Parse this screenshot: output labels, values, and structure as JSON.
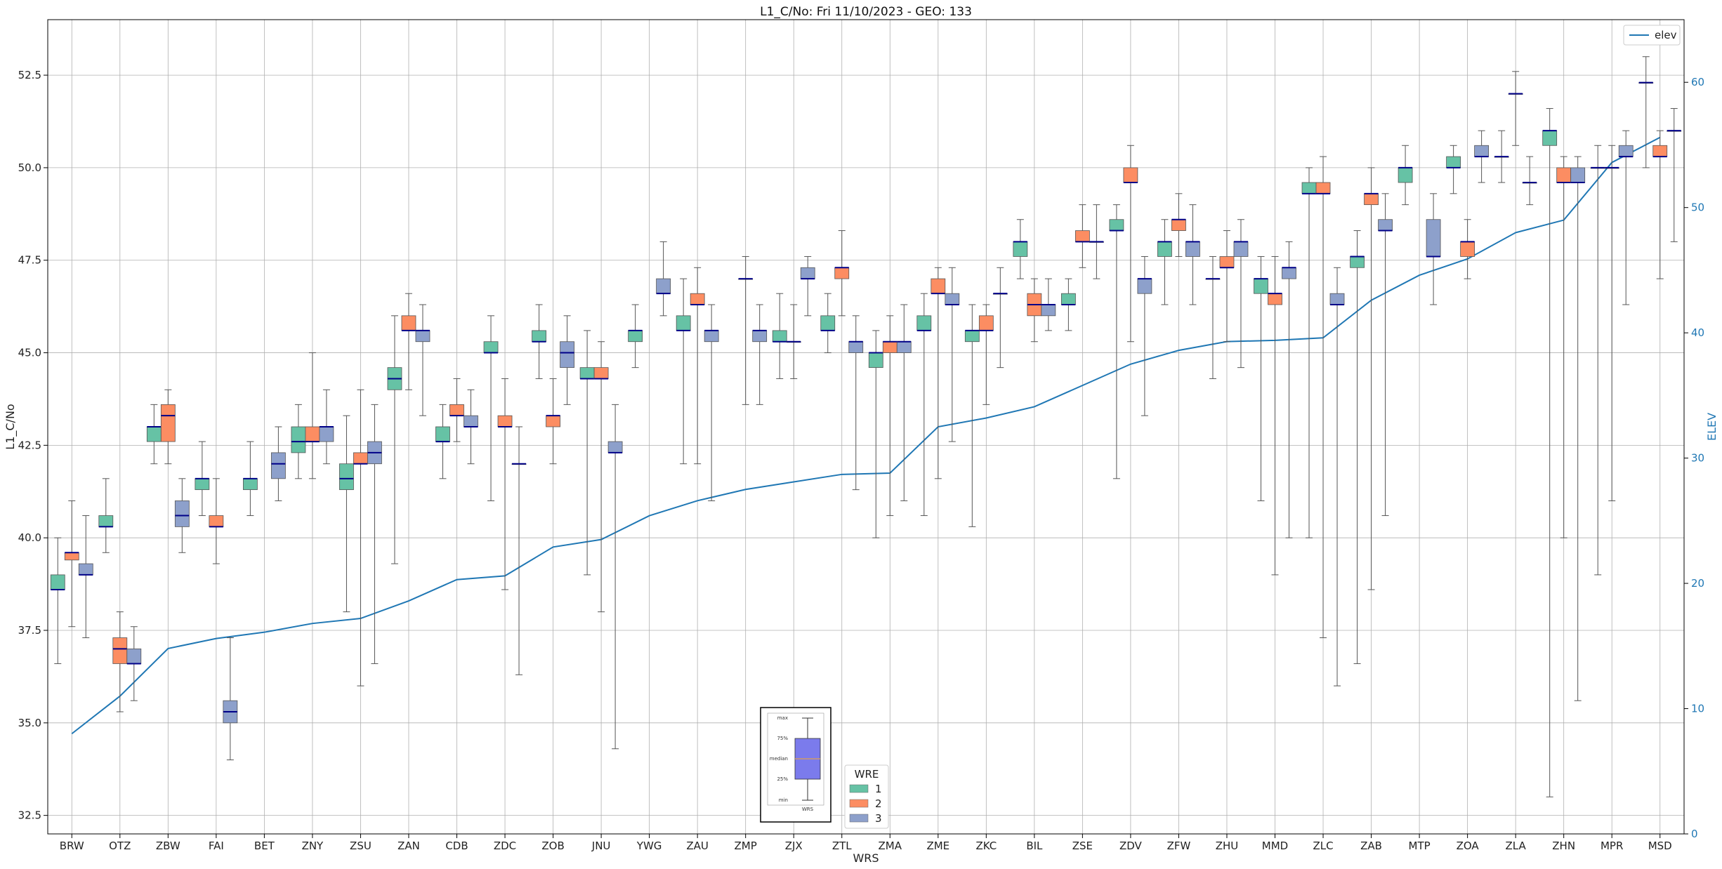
{
  "chart_data": {
    "type": "box",
    "title": "L1_C/No: Fri 11/10/2023 - GEO: 133",
    "xlabel": "WRS",
    "ylabel": "L1_C/No",
    "y2label": "ELEV",
    "ylim": [
      32.0,
      54.0
    ],
    "y2lim": [
      0,
      65
    ],
    "yticks": [
      "32.5",
      "35.0",
      "37.5",
      "40.0",
      "42.5",
      "45.0",
      "47.5",
      "50.0",
      "52.5"
    ],
    "y2ticks": [
      "0",
      "10",
      "20",
      "30",
      "40",
      "50",
      "60"
    ],
    "grid": true,
    "categories": [
      "BRW",
      "OTZ",
      "ZBW",
      "FAI",
      "BET",
      "ZNY",
      "ZSU",
      "ZAN",
      "CDB",
      "ZDC",
      "ZOB",
      "JNU",
      "YWG",
      "ZAU",
      "ZMP",
      "ZJX",
      "ZTL",
      "ZMA",
      "ZME",
      "ZKC",
      "BIL",
      "ZSE",
      "ZDV",
      "ZFW",
      "ZHU",
      "MMD",
      "ZLC",
      "ZAB",
      "MTP",
      "ZOA",
      "ZLA",
      "ZHN",
      "MPR",
      "MSD"
    ],
    "series_colors": {
      "1": "#66c2a5",
      "2": "#fc8d62",
      "3": "#8da0cb"
    },
    "boxes": [
      {
        "station": "BRW",
        "wre": 1,
        "min": 36.6,
        "q1": 38.6,
        "median": 38.6,
        "q3": 39.0,
        "max": 40.0
      },
      {
        "station": "BRW",
        "wre": 2,
        "min": 37.6,
        "q1": 39.4,
        "median": 39.6,
        "q3": 39.6,
        "max": 41.0
      },
      {
        "station": "BRW",
        "wre": 3,
        "min": 37.3,
        "q1": 39.0,
        "median": 39.0,
        "q3": 39.3,
        "max": 40.6
      },
      {
        "station": "OTZ",
        "wre": 1,
        "min": 39.6,
        "q1": 40.3,
        "median": 40.3,
        "q3": 40.6,
        "max": 41.6
      },
      {
        "station": "OTZ",
        "wre": 2,
        "min": 35.3,
        "q1": 36.6,
        "median": 37.0,
        "q3": 37.3,
        "max": 38.0
      },
      {
        "station": "OTZ",
        "wre": 3,
        "min": 35.6,
        "q1": 36.6,
        "median": 36.6,
        "q3": 37.0,
        "max": 37.6
      },
      {
        "station": "ZBW",
        "wre": 1,
        "min": 42.0,
        "q1": 42.6,
        "median": 43.0,
        "q3": 43.0,
        "max": 43.6
      },
      {
        "station": "ZBW",
        "wre": 2,
        "min": 42.0,
        "q1": 42.6,
        "median": 43.3,
        "q3": 43.6,
        "max": 44.0
      },
      {
        "station": "ZBW",
        "wre": 3,
        "min": 39.6,
        "q1": 40.3,
        "median": 40.6,
        "q3": 41.0,
        "max": 41.6
      },
      {
        "station": "FAI",
        "wre": 1,
        "min": 40.6,
        "q1": 41.3,
        "median": 41.6,
        "q3": 41.6,
        "max": 42.6
      },
      {
        "station": "FAI",
        "wre": 2,
        "min": 39.3,
        "q1": 40.3,
        "median": 40.3,
        "q3": 40.6,
        "max": 41.6
      },
      {
        "station": "FAI",
        "wre": 3,
        "min": 34.0,
        "q1": 35.0,
        "median": 35.3,
        "q3": 35.6,
        "max": 37.3
      },
      {
        "station": "BET",
        "wre": 1,
        "min": 40.6,
        "q1": 41.3,
        "median": 41.6,
        "q3": 41.6,
        "max": 42.6
      },
      {
        "station": "BET",
        "wre": 3,
        "min": 41.0,
        "q1": 41.6,
        "median": 42.0,
        "q3": 42.3,
        "max": 43.0
      },
      {
        "station": "ZNY",
        "wre": 1,
        "min": 41.6,
        "q1": 42.3,
        "median": 42.6,
        "q3": 43.0,
        "max": 43.6
      },
      {
        "station": "ZNY",
        "wre": 2,
        "min": 41.6,
        "q1": 42.6,
        "median": 42.6,
        "q3": 43.0,
        "max": 45.0
      },
      {
        "station": "ZNY",
        "wre": 3,
        "min": 42.0,
        "q1": 42.6,
        "median": 43.0,
        "q3": 43.0,
        "max": 44.0
      },
      {
        "station": "ZSU",
        "wre": 1,
        "min": 38.0,
        "q1": 41.3,
        "median": 41.6,
        "q3": 42.0,
        "max": 43.3
      },
      {
        "station": "ZSU",
        "wre": 2,
        "min": 36.0,
        "q1": 42.0,
        "median": 42.0,
        "q3": 42.3,
        "max": 44.0
      },
      {
        "station": "ZSU",
        "wre": 3,
        "min": 36.6,
        "q1": 42.0,
        "median": 42.3,
        "q3": 42.6,
        "max": 43.6
      },
      {
        "station": "ZAN",
        "wre": 1,
        "min": 39.3,
        "q1": 44.0,
        "median": 44.3,
        "q3": 44.6,
        "max": 46.0
      },
      {
        "station": "ZAN",
        "wre": 2,
        "min": 44.0,
        "q1": 45.6,
        "median": 45.6,
        "q3": 46.0,
        "max": 46.6
      },
      {
        "station": "ZAN",
        "wre": 3,
        "min": 43.3,
        "q1": 45.3,
        "median": 45.6,
        "q3": 45.6,
        "max": 46.3
      },
      {
        "station": "CDB",
        "wre": 1,
        "min": 41.6,
        "q1": 42.6,
        "median": 42.6,
        "q3": 43.0,
        "max": 43.6
      },
      {
        "station": "CDB",
        "wre": 2,
        "min": 42.6,
        "q1": 43.3,
        "median": 43.3,
        "q3": 43.6,
        "max": 44.3
      },
      {
        "station": "CDB",
        "wre": 3,
        "min": 42.0,
        "q1": 43.0,
        "median": 43.0,
        "q3": 43.3,
        "max": 44.0
      },
      {
        "station": "ZDC",
        "wre": 1,
        "min": 41.0,
        "q1": 45.0,
        "median": 45.0,
        "q3": 45.3,
        "max": 46.0
      },
      {
        "station": "ZDC",
        "wre": 2,
        "min": 38.6,
        "q1": 43.0,
        "median": 43.0,
        "q3": 43.3,
        "max": 44.3
      },
      {
        "station": "ZDC",
        "wre": 3,
        "min": 36.3,
        "q1": 42.0,
        "median": 42.0,
        "q3": 42.0,
        "max": 43.0
      },
      {
        "station": "ZOB",
        "wre": 1,
        "min": 44.3,
        "q1": 45.3,
        "median": 45.3,
        "q3": 45.6,
        "max": 46.3
      },
      {
        "station": "ZOB",
        "wre": 2,
        "min": 42.0,
        "q1": 43.0,
        "median": 43.3,
        "q3": 43.3,
        "max": 44.3
      },
      {
        "station": "ZOB",
        "wre": 3,
        "min": 43.6,
        "q1": 44.6,
        "median": 45.0,
        "q3": 45.3,
        "max": 46.0
      },
      {
        "station": "JNU",
        "wre": 1,
        "min": 39.0,
        "q1": 44.3,
        "median": 44.3,
        "q3": 44.6,
        "max": 45.6
      },
      {
        "station": "JNU",
        "wre": 2,
        "min": 38.0,
        "q1": 44.3,
        "median": 44.3,
        "q3": 44.6,
        "max": 45.3
      },
      {
        "station": "JNU",
        "wre": 3,
        "min": 34.3,
        "q1": 42.3,
        "median": 42.3,
        "q3": 42.6,
        "max": 43.6
      },
      {
        "station": "YWG",
        "wre": 1,
        "min": 44.6,
        "q1": 45.3,
        "median": 45.6,
        "q3": 45.6,
        "max": 46.3
      },
      {
        "station": "YWG",
        "wre": 3,
        "min": 46.0,
        "q1": 46.6,
        "median": 46.6,
        "q3": 47.0,
        "max": 48.0
      },
      {
        "station": "ZAU",
        "wre": 1,
        "min": 42.0,
        "q1": 45.6,
        "median": 45.6,
        "q3": 46.0,
        "max": 47.0
      },
      {
        "station": "ZAU",
        "wre": 2,
        "min": 42.0,
        "q1": 46.3,
        "median": 46.3,
        "q3": 46.6,
        "max": 47.3
      },
      {
        "station": "ZAU",
        "wre": 3,
        "min": 41.0,
        "q1": 45.3,
        "median": 45.6,
        "q3": 45.6,
        "max": 46.3
      },
      {
        "station": "ZMP",
        "wre": 2,
        "min": 43.6,
        "q1": 47.0,
        "median": 47.0,
        "q3": 47.0,
        "max": 47.6
      },
      {
        "station": "ZMP",
        "wre": 3,
        "min": 43.6,
        "q1": 45.3,
        "median": 45.6,
        "q3": 45.6,
        "max": 46.3
      },
      {
        "station": "ZJX",
        "wre": 1,
        "min": 44.3,
        "q1": 45.3,
        "median": 45.3,
        "q3": 45.6,
        "max": 46.6
      },
      {
        "station": "ZJX",
        "wre": 2,
        "min": 44.3,
        "q1": 45.3,
        "median": 45.3,
        "q3": 45.3,
        "max": 46.3
      },
      {
        "station": "ZJX",
        "wre": 3,
        "min": 46.0,
        "q1": 47.0,
        "median": 47.0,
        "q3": 47.3,
        "max": 47.6
      },
      {
        "station": "ZTL",
        "wre": 1,
        "min": 45.0,
        "q1": 45.6,
        "median": 45.6,
        "q3": 46.0,
        "max": 46.6
      },
      {
        "station": "ZTL",
        "wre": 2,
        "min": 46.0,
        "q1": 47.0,
        "median": 47.3,
        "q3": 47.3,
        "max": 48.3
      },
      {
        "station": "ZTL",
        "wre": 3,
        "min": 41.3,
        "q1": 45.0,
        "median": 45.3,
        "q3": 45.3,
        "max": 46.0
      },
      {
        "station": "ZMA",
        "wre": 1,
        "min": 40.0,
        "q1": 44.6,
        "median": 45.0,
        "q3": 45.0,
        "max": 45.6
      },
      {
        "station": "ZMA",
        "wre": 2,
        "min": 40.6,
        "q1": 45.0,
        "median": 45.3,
        "q3": 45.3,
        "max": 46.0
      },
      {
        "station": "ZMA",
        "wre": 3,
        "min": 41.0,
        "q1": 45.0,
        "median": 45.3,
        "q3": 45.3,
        "max": 46.3
      },
      {
        "station": "ZME",
        "wre": 1,
        "min": 40.6,
        "q1": 45.6,
        "median": 45.6,
        "q3": 46.0,
        "max": 46.6
      },
      {
        "station": "ZME",
        "wre": 2,
        "min": 41.6,
        "q1": 46.6,
        "median": 46.6,
        "q3": 47.0,
        "max": 47.3
      },
      {
        "station": "ZME",
        "wre": 3,
        "min": 42.6,
        "q1": 46.3,
        "median": 46.3,
        "q3": 46.6,
        "max": 47.3
      },
      {
        "station": "ZKC",
        "wre": 1,
        "min": 40.3,
        "q1": 45.3,
        "median": 45.6,
        "q3": 45.6,
        "max": 46.3
      },
      {
        "station": "ZKC",
        "wre": 2,
        "min": 43.6,
        "q1": 45.6,
        "median": 45.6,
        "q3": 46.0,
        "max": 46.3
      },
      {
        "station": "ZKC",
        "wre": 3,
        "min": 44.6,
        "q1": 46.6,
        "median": 46.6,
        "q3": 46.6,
        "max": 47.3
      },
      {
        "station": "BIL",
        "wre": 1,
        "min": 47.0,
        "q1": 47.6,
        "median": 48.0,
        "q3": 48.0,
        "max": 48.6
      },
      {
        "station": "BIL",
        "wre": 2,
        "min": 45.3,
        "q1": 46.0,
        "median": 46.3,
        "q3": 46.6,
        "max": 47.0
      },
      {
        "station": "BIL",
        "wre": 3,
        "min": 45.6,
        "q1": 46.0,
        "median": 46.3,
        "q3": 46.3,
        "max": 47.0
      },
      {
        "station": "ZSE",
        "wre": 1,
        "min": 45.6,
        "q1": 46.3,
        "median": 46.3,
        "q3": 46.6,
        "max": 47.0
      },
      {
        "station": "ZSE",
        "wre": 2,
        "min": 47.3,
        "q1": 48.0,
        "median": 48.0,
        "q3": 48.3,
        "max": 49.0
      },
      {
        "station": "ZSE",
        "wre": 3,
        "min": 47.0,
        "q1": 48.0,
        "median": 48.0,
        "q3": 48.0,
        "max": 49.0
      },
      {
        "station": "ZDV",
        "wre": 1,
        "min": 41.6,
        "q1": 48.3,
        "median": 48.3,
        "q3": 48.6,
        "max": 49.0
      },
      {
        "station": "ZDV",
        "wre": 2,
        "min": 45.3,
        "q1": 49.6,
        "median": 49.6,
        "q3": 50.0,
        "max": 50.6
      },
      {
        "station": "ZDV",
        "wre": 3,
        "min": 43.3,
        "q1": 46.6,
        "median": 47.0,
        "q3": 47.0,
        "max": 47.6
      },
      {
        "station": "ZFW",
        "wre": 1,
        "min": 46.3,
        "q1": 47.6,
        "median": 48.0,
        "q3": 48.0,
        "max": 48.6
      },
      {
        "station": "ZFW",
        "wre": 2,
        "min": 47.6,
        "q1": 48.3,
        "median": 48.6,
        "q3": 48.6,
        "max": 49.3
      },
      {
        "station": "ZFW",
        "wre": 3,
        "min": 46.3,
        "q1": 47.6,
        "median": 48.0,
        "q3": 48.0,
        "max": 49.0
      },
      {
        "station": "ZHU",
        "wre": 1,
        "min": 44.3,
        "q1": 47.0,
        "median": 47.0,
        "q3": 47.0,
        "max": 47.6
      },
      {
        "station": "ZHU",
        "wre": 2,
        "min": 45.3,
        "q1": 47.3,
        "median": 47.3,
        "q3": 47.6,
        "max": 48.3
      },
      {
        "station": "ZHU",
        "wre": 3,
        "min": 44.6,
        "q1": 47.6,
        "median": 48.0,
        "q3": 48.0,
        "max": 48.6
      },
      {
        "station": "MMD",
        "wre": 1,
        "min": 41.0,
        "q1": 46.6,
        "median": 47.0,
        "q3": 47.0,
        "max": 47.6
      },
      {
        "station": "MMD",
        "wre": 2,
        "min": 39.0,
        "q1": 46.3,
        "median": 46.6,
        "q3": 46.6,
        "max": 47.6
      },
      {
        "station": "MMD",
        "wre": 3,
        "min": 40.0,
        "q1": 47.0,
        "median": 47.3,
        "q3": 47.3,
        "max": 48.0
      },
      {
        "station": "ZLC",
        "wre": 1,
        "min": 40.0,
        "q1": 49.3,
        "median": 49.3,
        "q3": 49.6,
        "max": 50.0
      },
      {
        "station": "ZLC",
        "wre": 2,
        "min": 37.3,
        "q1": 49.3,
        "median": 49.3,
        "q3": 49.6,
        "max": 50.3
      },
      {
        "station": "ZLC",
        "wre": 3,
        "min": 36.0,
        "q1": 46.3,
        "median": 46.3,
        "q3": 46.6,
        "max": 47.3
      },
      {
        "station": "ZAB",
        "wre": 1,
        "min": 36.6,
        "q1": 47.3,
        "median": 47.6,
        "q3": 47.6,
        "max": 48.3
      },
      {
        "station": "ZAB",
        "wre": 2,
        "min": 38.6,
        "q1": 49.0,
        "median": 49.3,
        "q3": 49.3,
        "max": 50.0
      },
      {
        "station": "ZAB",
        "wre": 3,
        "min": 40.6,
        "q1": 48.3,
        "median": 48.3,
        "q3": 48.6,
        "max": 49.3
      },
      {
        "station": "MTP",
        "wre": 1,
        "min": 49.0,
        "q1": 49.6,
        "median": 50.0,
        "q3": 50.0,
        "max": 50.6
      },
      {
        "station": "MTP",
        "wre": 3,
        "min": 46.3,
        "q1": 47.6,
        "median": 47.6,
        "q3": 48.6,
        "max": 49.3
      },
      {
        "station": "ZOA",
        "wre": 1,
        "min": 49.3,
        "q1": 50.0,
        "median": 50.0,
        "q3": 50.3,
        "max": 50.6
      },
      {
        "station": "ZOA",
        "wre": 2,
        "min": 47.0,
        "q1": 47.6,
        "median": 48.0,
        "q3": 48.0,
        "max": 48.6
      },
      {
        "station": "ZOA",
        "wre": 3,
        "min": 49.6,
        "q1": 50.3,
        "median": 50.3,
        "q3": 50.6,
        "max": 51.0
      },
      {
        "station": "ZLA",
        "wre": 1,
        "min": 49.6,
        "q1": 50.3,
        "median": 50.3,
        "q3": 50.3,
        "max": 51.0
      },
      {
        "station": "ZLA",
        "wre": 2,
        "min": 50.6,
        "q1": 52.0,
        "median": 52.0,
        "q3": 52.0,
        "max": 52.6
      },
      {
        "station": "ZLA",
        "wre": 3,
        "min": 49.0,
        "q1": 49.6,
        "median": 49.6,
        "q3": 49.6,
        "max": 50.3
      },
      {
        "station": "ZHN",
        "wre": 1,
        "min": 33.0,
        "q1": 50.6,
        "median": 51.0,
        "q3": 51.0,
        "max": 51.6
      },
      {
        "station": "ZHN",
        "wre": 2,
        "min": 40.0,
        "q1": 49.6,
        "median": 49.6,
        "q3": 50.0,
        "max": 50.3
      },
      {
        "station": "ZHN",
        "wre": 3,
        "min": 35.6,
        "q1": 49.6,
        "median": 49.6,
        "q3": 50.0,
        "max": 50.3
      },
      {
        "station": "MPR",
        "wre": 1,
        "min": 39.0,
        "q1": 50.0,
        "median": 50.0,
        "q3": 50.0,
        "max": 50.6
      },
      {
        "station": "MPR",
        "wre": 2,
        "min": 41.0,
        "q1": 50.0,
        "median": 50.0,
        "q3": 50.0,
        "max": 50.6
      },
      {
        "station": "MPR",
        "wre": 3,
        "min": 46.3,
        "q1": 50.3,
        "median": 50.3,
        "q3": 50.6,
        "max": 51.0
      },
      {
        "station": "MSD",
        "wre": 1,
        "min": 50.0,
        "q1": 52.3,
        "median": 52.3,
        "q3": 52.3,
        "max": 53.0
      },
      {
        "station": "MSD",
        "wre": 2,
        "min": 47.0,
        "q1": 50.3,
        "median": 50.3,
        "q3": 50.6,
        "max": 51.0
      },
      {
        "station": "MSD",
        "wre": 3,
        "min": 48.0,
        "q1": 51.0,
        "median": 51.0,
        "q3": 51.0,
        "max": 51.6
      }
    ],
    "elev_series": {
      "name": "elev",
      "color": "#1f77b4",
      "values": [
        8.0,
        11.0,
        14.8,
        15.6,
        16.1,
        16.8,
        17.2,
        18.6,
        20.3,
        20.6,
        22.9,
        23.5,
        25.4,
        26.6,
        27.5,
        28.1,
        28.7,
        28.8,
        32.5,
        33.2,
        34.1,
        35.8,
        37.5,
        38.6,
        39.3,
        39.4,
        39.6,
        42.6,
        44.6,
        45.9,
        48.0,
        49.0,
        53.6,
        55.6
      ]
    },
    "legend_wre": {
      "title": "WRE",
      "entries": [
        "1",
        "2",
        "3"
      ],
      "placement": "bottom-center"
    },
    "legend_elev": {
      "entries": [
        "elev"
      ],
      "placement": "top-right"
    },
    "box_key": {
      "labels": [
        "max",
        "75%",
        "median",
        "25%",
        "min"
      ],
      "caption": "WRS"
    }
  }
}
